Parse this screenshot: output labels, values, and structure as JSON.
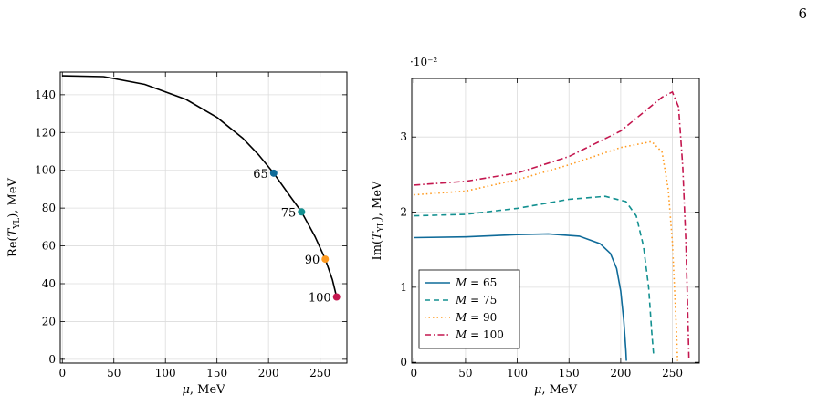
{
  "page_number": "6",
  "chart_data": [
    {
      "type": "line",
      "xlabel": "μ, MeV",
      "ylabel": "Re(T_YL), MeV",
      "xlim": [
        -2,
        276
      ],
      "ylim": [
        -2,
        152
      ],
      "xticks": [
        0,
        50,
        100,
        150,
        200,
        250
      ],
      "yticks": [
        0,
        20,
        40,
        60,
        80,
        100,
        120,
        140
      ],
      "grid": true,
      "curve": {
        "x": [
          0,
          40,
          80,
          120,
          150,
          175,
          190,
          205,
          220,
          232,
          245,
          255,
          262,
          266
        ],
        "y": [
          150,
          149.6,
          145.5,
          137.5,
          128,
          117,
          108.4,
          98.5,
          87,
          78,
          65,
          53,
          42,
          33
        ]
      },
      "points": [
        {
          "label": "65",
          "x": 205,
          "y": 98.5,
          "color": "#0f6b99"
        },
        {
          "label": "75",
          "x": 232,
          "y": 78,
          "color": "#139090"
        },
        {
          "label": "90",
          "x": 255,
          "y": 53,
          "color": "#ff9a1f"
        },
        {
          "label": "100",
          "x": 266,
          "y": 33,
          "color": "#c4174f"
        }
      ]
    },
    {
      "type": "line",
      "xlabel": "μ, MeV",
      "ylabel": "Im(T_YL), MeV",
      "y_multiplier": "·10⁻²",
      "xlim": [
        -2,
        276
      ],
      "ylim": [
        -0.01,
        3.78
      ],
      "xticks": [
        0,
        50,
        100,
        150,
        200,
        250
      ],
      "yticks": [
        0,
        1,
        2,
        3
      ],
      "grid": true,
      "legend_position": "bottom-left",
      "series": [
        {
          "name": "M = 65",
          "color": "#0f6b99",
          "dash": "solid",
          "x": [
            0,
            50,
            100,
            130,
            160,
            180,
            190,
            196,
            200,
            203,
            205,
            205.5
          ],
          "y": [
            1.66,
            1.67,
            1.7,
            1.71,
            1.68,
            1.58,
            1.45,
            1.25,
            0.95,
            0.55,
            0.15,
            0.02
          ]
        },
        {
          "name": "M = 75",
          "color": "#139090",
          "dash": "6 4",
          "x": [
            0,
            50,
            100,
            150,
            185,
            205,
            215,
            222,
            227,
            230,
            232
          ],
          "y": [
            1.95,
            1.97,
            2.05,
            2.17,
            2.21,
            2.14,
            1.95,
            1.55,
            1.0,
            0.4,
            0.08
          ]
        },
        {
          "name": "M = 90",
          "color": "#ff9a1f",
          "dash": "1.5 3",
          "x": [
            0,
            50,
            100,
            150,
            200,
            230,
            240,
            246,
            250,
            252,
            254,
            255
          ],
          "y": [
            2.23,
            2.28,
            2.43,
            2.63,
            2.86,
            2.94,
            2.8,
            2.3,
            1.6,
            1.0,
            0.4,
            0.02
          ]
        },
        {
          "name": "M = 100",
          "color": "#c4174f",
          "dash": "7 3 1.5 3",
          "x": [
            0,
            50,
            100,
            150,
            200,
            240,
            250,
            256,
            260,
            263,
            265,
            266
          ],
          "y": [
            2.36,
            2.41,
            2.52,
            2.74,
            3.08,
            3.53,
            3.6,
            3.4,
            2.6,
            1.6,
            0.6,
            0.02
          ]
        }
      ]
    }
  ]
}
